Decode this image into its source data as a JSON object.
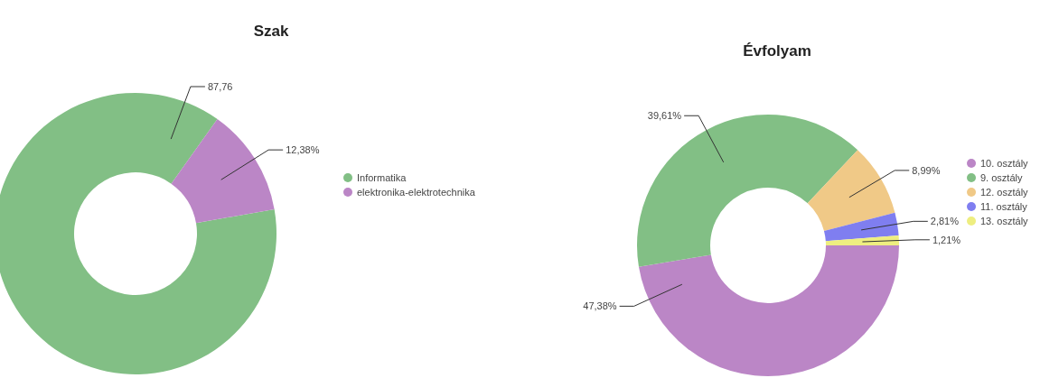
{
  "chart_data": [
    {
      "type": "donut",
      "title": "Szak",
      "categories": [
        "Informatika",
        "elektronika-elektrotechnika"
      ],
      "values": [
        87.76,
        12.38
      ],
      "value_labels": [
        "87,76",
        "12,38%"
      ],
      "colors": [
        "#82bf85",
        "#bb86c6"
      ],
      "legend": "right"
    },
    {
      "type": "donut",
      "title": "Évfolyam",
      "categories": [
        "10. osztály",
        "9. osztály",
        "12. osztály",
        "11. osztály",
        "13. osztály"
      ],
      "values": [
        47.38,
        39.61,
        8.99,
        2.81,
        1.21
      ],
      "value_labels": [
        "47,38%",
        "39,61%",
        "8,99%",
        "2,81%",
        "1,21%"
      ],
      "colors": [
        "#bb86c6",
        "#82bf85",
        "#f0c987",
        "#7f7ef0",
        "#eeee80"
      ],
      "legend": "right"
    }
  ]
}
